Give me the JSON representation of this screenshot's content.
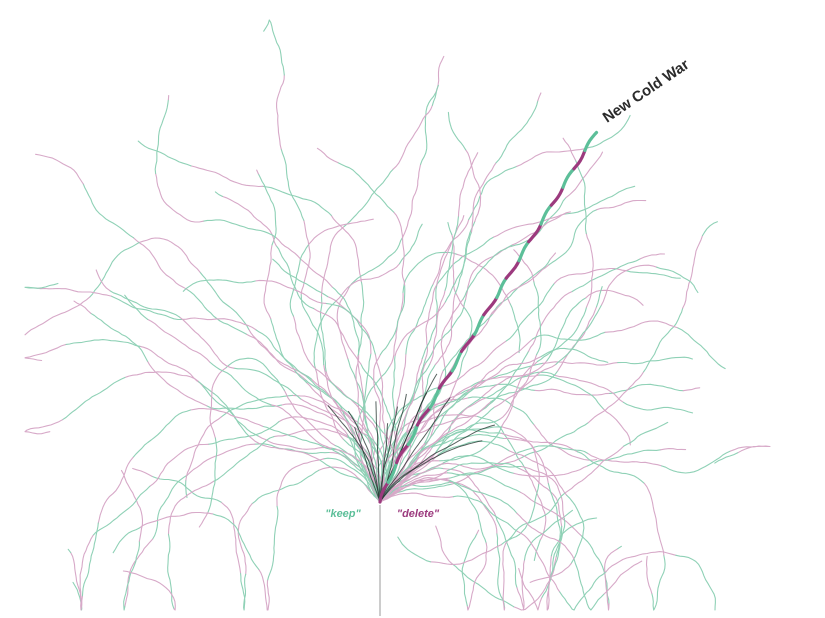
{
  "chart_data": {
    "type": "line",
    "title": "",
    "xlabel": "",
    "ylabel": "",
    "grid": false,
    "legend": "none",
    "labels": {
      "keep": "\"keep\"",
      "delete": "\"delete\""
    },
    "annotation": "New Cold War",
    "colors": {
      "keep": "#5cbf99",
      "delete": "#9c3a7e",
      "keep_faint": "#8fd1b6",
      "delete_faint": "#d7a9c8",
      "trunk": "#1f2d2a",
      "stem": "#9a9a9a"
    },
    "series": [
      {
        "name": "New Cold War",
        "highlighted": true,
        "turn_sequence": "LLRRLLRRRRRLRLLRRLLLLRRRRRLLLRLLLRRRRLLRRRLLRRRLLLLLRRR"
      }
    ]
  }
}
